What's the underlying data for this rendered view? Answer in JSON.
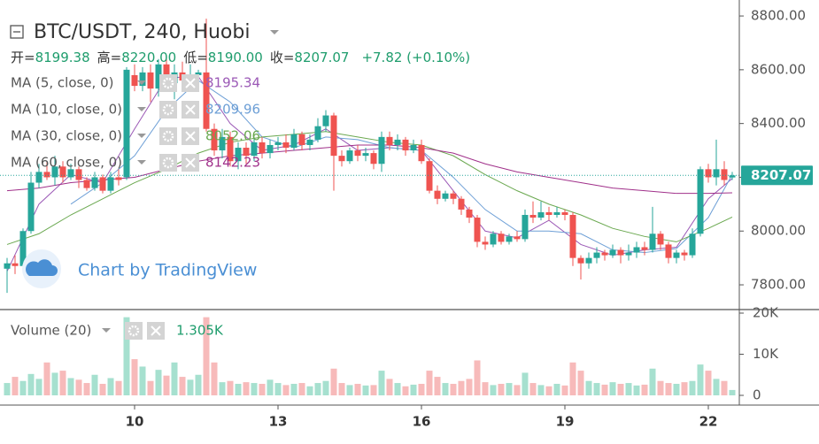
{
  "chart_data": {
    "type": "candlestick",
    "title": "BTC/USDT, 240, Huobi",
    "ohlc_legend": [
      {
        "label": "开=",
        "value": "8199.38"
      },
      {
        "label": "高=",
        "value": "8220.00"
      },
      {
        "label": "低=",
        "value": "8190.00"
      },
      {
        "label": "收=",
        "value": "8207.07"
      }
    ],
    "change": "+7.82 (+0.10%)",
    "watermark": "Chart by TradingView",
    "up_color": "#26a69a",
    "down_color": "#ef5350",
    "categories": [
      null,
      null,
      null,
      null,
      null,
      null,
      null,
      null,
      null,
      null,
      null,
      null,
      null,
      null,
      null,
      null,
      "10",
      null,
      null,
      null,
      null,
      null,
      null,
      null,
      null,
      null,
      null,
      null,
      null,
      null,
      null,
      null,
      null,
      null,
      "13",
      null,
      null,
      null,
      null,
      null,
      null,
      null,
      null,
      null,
      null,
      null,
      null,
      null,
      null,
      null,
      null,
      null,
      "16",
      null,
      null,
      null,
      null,
      null,
      null,
      null,
      null,
      null,
      null,
      null,
      null,
      null,
      null,
      null,
      null,
      null,
      "19",
      null,
      null,
      null,
      null,
      null,
      null,
      null,
      null,
      null,
      null,
      null,
      null,
      null,
      null,
      null,
      null,
      null,
      "22",
      null,
      null,
      null
    ],
    "open": [
      7860,
      7880,
      7870,
      8000,
      8180,
      8220,
      8200,
      8240,
      8200,
      8230,
      8190,
      8160,
      8200,
      8150,
      8200,
      8200,
      8580,
      8540,
      8590,
      8530,
      8620,
      8550,
      8590,
      8560,
      8580,
      8590,
      8380,
      8300,
      8350,
      8260,
      8310,
      8280,
      8330,
      8290,
      8320,
      8330,
      8310,
      8360,
      8320,
      8340,
      8390,
      8430,
      8280,
      8260,
      8300,
      8280,
      8290,
      8250,
      8350,
      8320,
      8340,
      8300,
      8320,
      8260,
      8150,
      8120,
      8140,
      8120,
      8080,
      8050,
      7960,
      7950,
      7990,
      7960,
      7980,
      7970,
      8060,
      8050,
      8070,
      8060,
      8070,
      8060,
      7900,
      7880,
      7900,
      7920,
      7910,
      7930,
      7910,
      7920,
      7940,
      7930,
      7990,
      7950,
      7900,
      7920,
      7910,
      7990,
      8230,
      8200,
      8230,
      8199.38
    ],
    "high": [
      7900,
      7910,
      8010,
      8220,
      8250,
      8260,
      8280,
      8260,
      8250,
      8240,
      8200,
      8220,
      8210,
      8220,
      8230,
      8610,
      8620,
      8610,
      8620,
      8640,
      8640,
      8620,
      8630,
      8620,
      8600,
      8790,
      8400,
      8380,
      8370,
      8330,
      8330,
      8350,
      8350,
      8340,
      8350,
      8360,
      8380,
      8370,
      8360,
      8420,
      8450,
      8440,
      8300,
      8310,
      8320,
      8310,
      8300,
      8370,
      8370,
      8360,
      8350,
      8340,
      8340,
      8270,
      8170,
      8150,
      8150,
      8130,
      8090,
      8060,
      7980,
      8000,
      8000,
      7990,
      8000,
      8080,
      8110,
      8110,
      8090,
      8090,
      8080,
      8070,
      7910,
      7920,
      7940,
      7930,
      7950,
      7940,
      7950,
      7960,
      7960,
      8090,
      8000,
      7960,
      7930,
      7930,
      8010,
      8240,
      8250,
      8340,
      8260,
      8220
    ],
    "low": [
      7770,
      7840,
      7860,
      7990,
      8160,
      8190,
      8170,
      8180,
      8190,
      8160,
      8150,
      8150,
      8140,
      8140,
      8170,
      8190,
      8520,
      8520,
      8480,
      8500,
      8520,
      8490,
      8540,
      8540,
      8560,
      8370,
      8280,
      8270,
      8240,
      8230,
      8250,
      8260,
      8270,
      8270,
      8300,
      8290,
      8300,
      8300,
      8300,
      8330,
      8370,
      8150,
      8240,
      8250,
      8260,
      8260,
      8230,
      8220,
      8300,
      8300,
      8280,
      8290,
      8250,
      8140,
      8100,
      8110,
      8100,
      8060,
      8030,
      7940,
      7930,
      7940,
      7950,
      7950,
      7960,
      7960,
      8030,
      8040,
      8040,
      8050,
      8040,
      7870,
      7820,
      7860,
      7880,
      7890,
      7900,
      7880,
      7890,
      7900,
      7910,
      7920,
      7930,
      7880,
      7880,
      7890,
      7900,
      7980,
      8180,
      8170,
      8170,
      8190
    ],
    "close": [
      7880,
      7870,
      8000,
      8180,
      8220,
      8200,
      8240,
      8200,
      8230,
      8190,
      8160,
      8200,
      8150,
      8200,
      8190,
      8600,
      8540,
      8590,
      8530,
      8620,
      8550,
      8590,
      8560,
      8580,
      8590,
      8380,
      8300,
      8350,
      8260,
      8310,
      8280,
      8330,
      8290,
      8320,
      8330,
      8310,
      8360,
      8320,
      8340,
      8390,
      8430,
      8280,
      8260,
      8300,
      8280,
      8290,
      8250,
      8350,
      8320,
      8340,
      8300,
      8320,
      8260,
      8150,
      8120,
      8140,
      8120,
      8080,
      8050,
      7960,
      7950,
      7990,
      7960,
      7980,
      7970,
      8060,
      8050,
      8070,
      8060,
      8070,
      8060,
      7900,
      7880,
      7900,
      7920,
      7910,
      7930,
      7910,
      7920,
      7940,
      7930,
      7990,
      7950,
      7900,
      7920,
      7910,
      7990,
      8230,
      8200,
      8230,
      8190,
      8207.07
    ],
    "ylim": [
      7708,
      8843
    ],
    "yticks": [
      {
        "value": 7800,
        "label": "7800.00"
      },
      {
        "value": 8000,
        "label": "8000.00"
      },
      {
        "value": 8200,
        "label": "8200.00"
      },
      {
        "value": 8400,
        "label": "8400.00"
      },
      {
        "value": 8600,
        "label": "8600.00"
      },
      {
        "value": 8800,
        "label": "8800.00"
      }
    ],
    "moving_averages": [
      {
        "name": "MA (5, close, 0)",
        "color": "#9b59b6",
        "x": [
          0,
          4,
          8,
          12,
          16,
          20,
          24,
          28,
          32,
          36,
          40,
          44,
          48,
          52,
          56,
          60,
          64,
          68,
          72,
          76,
          80,
          84,
          88,
          91
        ],
        "values": [
          7850,
          8100,
          8210,
          8180,
          8380,
          8570,
          8575,
          8400,
          8300,
          8320,
          8380,
          8300,
          8310,
          8300,
          8150,
          8000,
          7975,
          8040,
          7950,
          7910,
          7930,
          7940,
          8120,
          8195.34
        ]
      },
      {
        "name": "MA (10, close, 0)",
        "color": "#6d9fd6",
        "x": [
          0,
          4,
          8,
          12,
          16,
          20,
          24,
          28,
          32,
          36,
          40,
          44,
          48,
          52,
          56,
          60,
          64,
          68,
          72,
          76,
          80,
          84,
          88,
          91
        ],
        "values": [
          null,
          null,
          8100,
          8180,
          8280,
          8450,
          8560,
          8480,
          8350,
          8310,
          8350,
          8340,
          8310,
          8300,
          8200,
          8080,
          8000,
          8000,
          7990,
          7930,
          7920,
          7935,
          8050,
          8209.96
        ]
      },
      {
        "name": "MA (30, close, 0)",
        "color": "#6aa84f",
        "x": [
          0,
          4,
          8,
          12,
          16,
          20,
          24,
          28,
          32,
          36,
          40,
          44,
          48,
          52,
          56,
          60,
          64,
          68,
          72,
          76,
          80,
          84,
          88,
          91
        ],
        "values": [
          7950,
          7990,
          8060,
          8120,
          8180,
          8230,
          8290,
          8330,
          8350,
          8360,
          8370,
          8350,
          8330,
          8320,
          8280,
          8210,
          8150,
          8100,
          8060,
          8010,
          7980,
          7960,
          8010,
          8052.06
        ]
      },
      {
        "name": "MA (60, close, 0)",
        "color": "#a0308a",
        "x": [
          0,
          4,
          8,
          12,
          16,
          20,
          24,
          28,
          32,
          36,
          40,
          44,
          48,
          52,
          56,
          60,
          64,
          68,
          72,
          76,
          80,
          84,
          88,
          91
        ],
        "values": [
          8150,
          8160,
          8180,
          8190,
          8200,
          8230,
          8260,
          8280,
          8290,
          8300,
          8310,
          8320,
          8320,
          8310,
          8290,
          8250,
          8220,
          8200,
          8180,
          8160,
          8150,
          8140,
          8140,
          8142.23
        ]
      }
    ],
    "volume": {
      "name": "Volume (20)",
      "up_color": "#a6e0cf",
      "down_color": "#f7baba",
      "values": [
        3000,
        4500,
        3500,
        5200,
        4000,
        8000,
        5500,
        6000,
        4200,
        3800,
        3000,
        5000,
        2800,
        4200,
        3500,
        19000,
        8800,
        7000,
        3500,
        6200,
        4800,
        8000,
        4500,
        3800,
        5000,
        19000,
        8000,
        3200,
        3500,
        2800,
        3200,
        3000,
        2800,
        3800,
        3000,
        2500,
        2800,
        3000,
        2200,
        3000,
        3500,
        6500,
        3000,
        2500,
        2800,
        2400,
        2500,
        6000,
        4000,
        3000,
        2200,
        2600,
        2800,
        6000,
        4500,
        3000,
        2800,
        3500,
        4000,
        8500,
        3200,
        2500,
        2800,
        3000,
        2500,
        5500,
        3000,
        2500,
        2200,
        2800,
        2400,
        8000,
        6000,
        3500,
        3000,
        2600,
        3200,
        2800,
        3000,
        2400,
        2600,
        6500,
        3500,
        3000,
        2800,
        3200,
        3500,
        7500,
        6000,
        4000,
        3500,
        1305
      ],
      "last_value_label": "1.305K",
      "ylim": [
        -2366,
        20860
      ],
      "yticks": [
        {
          "value": 0,
          "label": "0"
        },
        {
          "value": 10000,
          "label": "10K"
        },
        {
          "value": 20000,
          "label": "20K"
        }
      ]
    }
  }
}
